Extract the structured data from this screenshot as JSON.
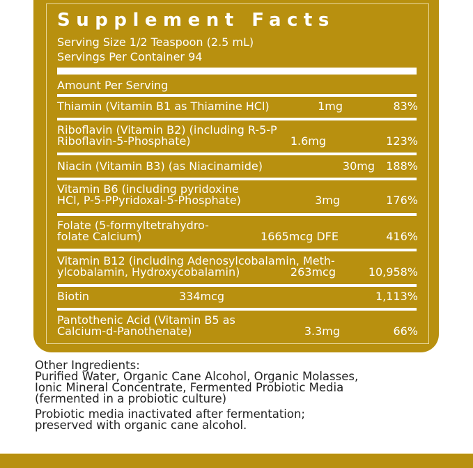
{
  "label": {
    "title": "Supplement Facts",
    "serving_size": "Serving Size 1/2 Teaspoon (2.5 mL)",
    "servings_per_container": "Servings Per Container 94",
    "amount_header": "Amount Per Serving",
    "nutrients": [
      {
        "name_lines": [
          "Thiamin (Vitamin B1 as Thiamine HCl)"
        ],
        "amount": "1mg",
        "percent": "83%"
      },
      {
        "name_lines": [
          "Riboflavin (Vitamin B2) (including R-5-P",
          "Riboflavin-5-Phosphate)"
        ],
        "amount": "1.6mg",
        "percent": "123%"
      },
      {
        "name_lines": [
          "Niacin (Vitamin B3) (as Niacinamide)"
        ],
        "amount": "30mg",
        "percent": "188%"
      },
      {
        "name_lines": [
          "Vitamin B6 (including pyridoxine",
          "HCl, P-5-PPyridoxal-5-Phosphate)"
        ],
        "amount": "3mg",
        "percent": "176%"
      },
      {
        "name_lines": [
          "Folate (5-formyltetrahydro-",
          "folate Calcium)"
        ],
        "amount": "1665mcg DFE",
        "percent": "416%"
      },
      {
        "name_lines": [
          "Vitamin B12 (including Adenosylcobalamin, Meth-",
          "ylcobalamin, Hydroxycobalamin)"
        ],
        "amount": "263mcg",
        "percent": "10,958%"
      },
      {
        "name_lines": [
          "Biotin"
        ],
        "amount": "334mcg",
        "percent": "1,113%"
      },
      {
        "name_lines": [
          "Pantothenic Acid (Vitamin B5 as",
          "Calcium-d-Panothenate)"
        ],
        "amount": "3.3mg",
        "percent": "66%"
      }
    ]
  },
  "other_ingredients": {
    "heading": "Other Ingredients:",
    "lines": [
      "Purified Water, Organic Cane Alcohol, Organic Molasses,",
      "Ionic Mineral Concentrate, Fermented Probiotic Media",
      "(fermented in a probiotic culture)"
    ],
    "note_lines": [
      "Probiotic media inactivated after fermentation;",
      "preserved with organic cane alcohol."
    ]
  },
  "colors": {
    "brand_gold": "#B8900F",
    "text_on_gold": "#FFFFFF",
    "body_text": "#222222"
  }
}
